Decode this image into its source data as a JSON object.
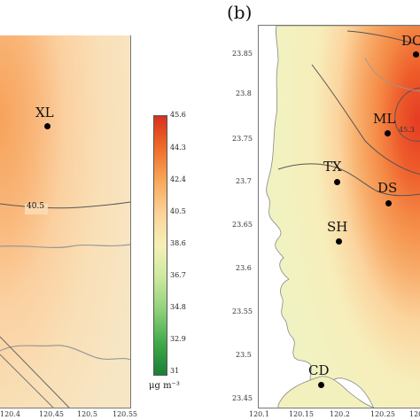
{
  "panel_a": {
    "x_ticks": [
      "120.4",
      "120.45",
      "120.5",
      "120.55"
    ],
    "y_ticks": [
      "",
      "",
      "",
      "",
      "",
      "",
      ""
    ],
    "stations": [
      {
        "name": "XL"
      }
    ],
    "contour_labels": [
      "40.5"
    ]
  },
  "panel_b": {
    "label": "(b)",
    "x_ticks": [
      "120.1",
      "120.15",
      "120.2",
      "120.25",
      "120.3"
    ],
    "y_ticks": [
      "23.85",
      "23.8",
      "23.75",
      "23.7",
      "23.65",
      "23.6",
      "23.55",
      "23.5",
      "23.45"
    ],
    "stations": [
      {
        "name": "DC"
      },
      {
        "name": "ML"
      },
      {
        "name": "TX"
      },
      {
        "name": "DS"
      },
      {
        "name": "SH"
      },
      {
        "name": "CD"
      }
    ],
    "contour_labels": [
      "45.3"
    ]
  },
  "colorbar": {
    "ticks": [
      "45.6",
      "44.3",
      "42.4",
      "40.5",
      "38.6",
      "36.7",
      "34.8",
      "32.9",
      "31"
    ],
    "unit": "μg m⁻³",
    "colors": [
      "#d7301f",
      "#ef6a2a",
      "#f8a85a",
      "#fbd49a",
      "#f5f0b8",
      "#cfe9a0",
      "#8fd17a",
      "#3fa94a",
      "#1a7f37"
    ]
  }
}
